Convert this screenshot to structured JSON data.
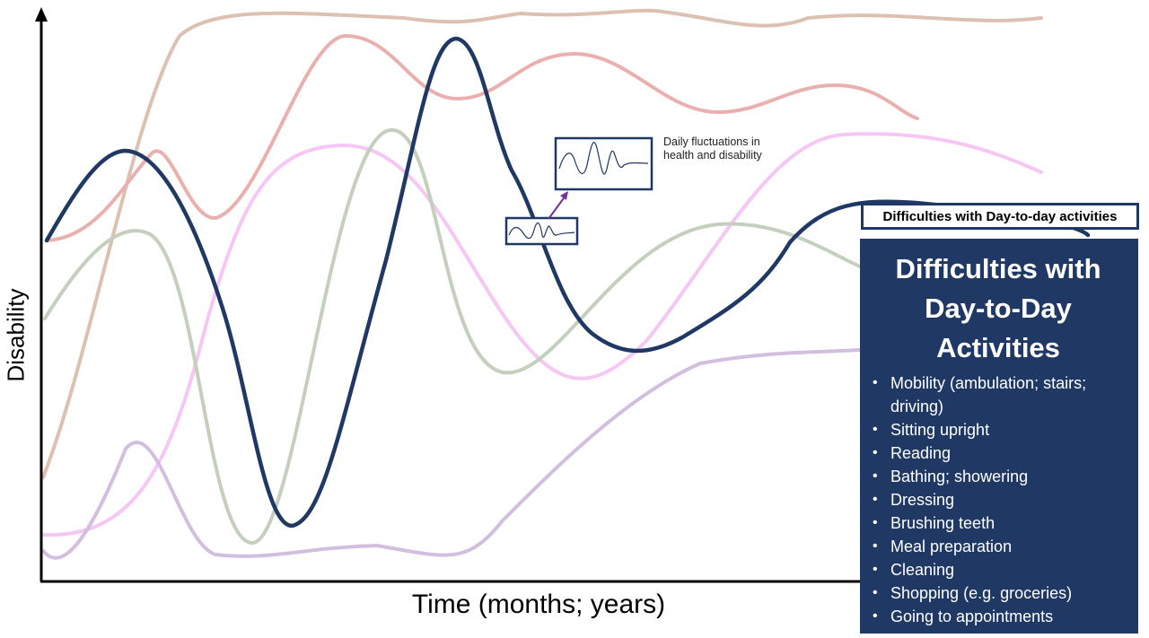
{
  "axes": {
    "y_label": "Disability",
    "x_label": "Time (months; years)"
  },
  "callout": {
    "note": "Daily fluctuations in health and disability",
    "label": "Difficulties with Day-to-day activities"
  },
  "panel": {
    "title": "Difficulties with Day-to-Day Activities",
    "items": [
      "Mobility (ambulation; stairs; driving)",
      "Sitting upright",
      "Reading",
      "Bathing; showering",
      "Dressing",
      "Brushing teeth",
      "Meal preparation",
      "Cleaning",
      "Shopping (e.g. groceries)",
      "Going to appointments"
    ]
  },
  "colors": {
    "main_curve": "#1f3864",
    "background_curves": [
      "#d9b8a8",
      "#e8a8a8",
      "#f4b8f4",
      "#b8c8b0",
      "#c8b0d8"
    ],
    "panel_bg": "#1f3864",
    "arrow": "#7030a0"
  }
}
